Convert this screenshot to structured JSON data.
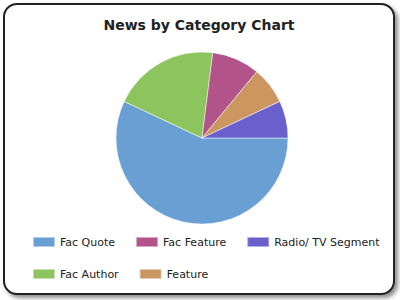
{
  "chart_data": {
    "type": "pie",
    "title": "News by Category Chart",
    "categories": [
      "Fac Quote",
      "Fac Author",
      "Fac Feature",
      "Feature",
      "Radio/ TV Segment"
    ],
    "values": [
      57,
      20,
      9,
      7,
      7
    ],
    "colors": [
      "#6a9fd4",
      "#8cc45e",
      "#b25389",
      "#cc9660",
      "#6a60cc"
    ],
    "legend": "bottom"
  }
}
